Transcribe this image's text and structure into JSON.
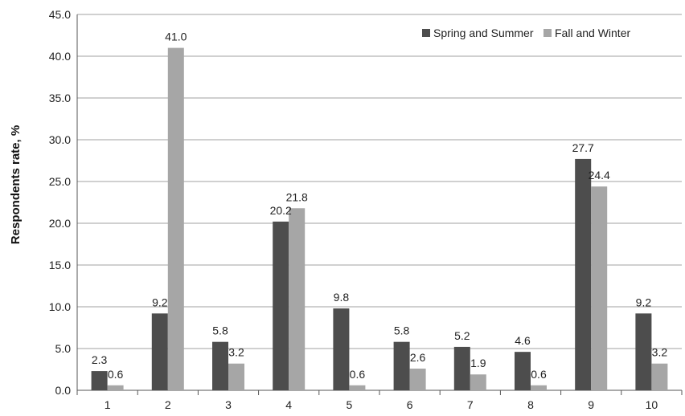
{
  "chart_data": {
    "type": "bar",
    "ylabel": "Respondents rate, %",
    "ylim": [
      0,
      45
    ],
    "yticks": [
      "0.0",
      "5.0",
      "10.0",
      "15.0",
      "20.0",
      "25.0",
      "30.0",
      "35.0",
      "40.0",
      "45.0"
    ],
    "categories": [
      "1",
      "2",
      "3",
      "4",
      "5",
      "6",
      "7",
      "8",
      "9",
      "10"
    ],
    "series": [
      {
        "name": "Spring and Summer",
        "color": "#4d4d4d",
        "values": [
          2.3,
          9.2,
          5.8,
          20.2,
          9.8,
          5.8,
          5.2,
          4.6,
          27.7,
          9.2
        ],
        "labels": [
          "2.3",
          "9.2",
          "5.8",
          "20.2",
          "9.8",
          "5.8",
          "5.2",
          "4.6",
          "27.7",
          "9.2"
        ]
      },
      {
        "name": "Fall and Winter",
        "color": "#a6a6a6",
        "values": [
          0.6,
          41.0,
          3.2,
          21.8,
          0.6,
          2.6,
          1.9,
          0.6,
          24.4,
          3.2
        ],
        "labels": [
          "0.6",
          "41.0",
          "3.2",
          "21.8",
          "0.6",
          "2.6",
          "1.9",
          "0.6",
          "24.4",
          "3.2"
        ]
      }
    ],
    "grid": true,
    "legend_position": "top-right"
  }
}
